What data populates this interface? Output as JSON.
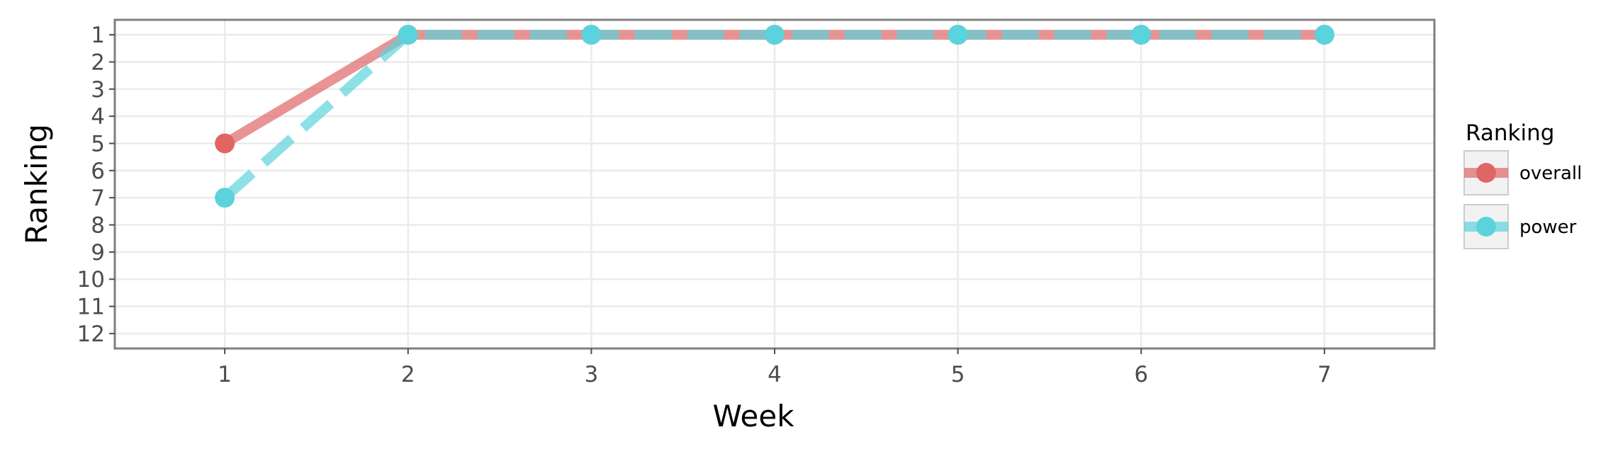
{
  "chart_data": {
    "type": "line",
    "xlabel": "Week",
    "ylabel": "Ranking",
    "x": [
      1,
      2,
      3,
      4,
      5,
      6,
      7
    ],
    "xlim": [
      0.4,
      7.6
    ],
    "ylim": [
      12.55,
      0.45
    ],
    "y_reversed": true,
    "x_ticks": [
      "1",
      "2",
      "3",
      "4",
      "5",
      "6",
      "7"
    ],
    "y_ticks": [
      "1",
      "2",
      "3",
      "4",
      "5",
      "6",
      "7",
      "8",
      "9",
      "10",
      "11",
      "12"
    ],
    "grid": true,
    "legend": {
      "title": "Ranking",
      "placement": "right"
    },
    "series": [
      {
        "name": "overall",
        "values": [
          5,
          1,
          1,
          1,
          1,
          1,
          1
        ],
        "color": "#e06666",
        "line_style": "solid"
      },
      {
        "name": "power",
        "values": [
          7,
          1,
          1,
          1,
          1,
          1,
          1
        ],
        "color": "#5bd3dc",
        "line_style": "dashed"
      }
    ]
  }
}
